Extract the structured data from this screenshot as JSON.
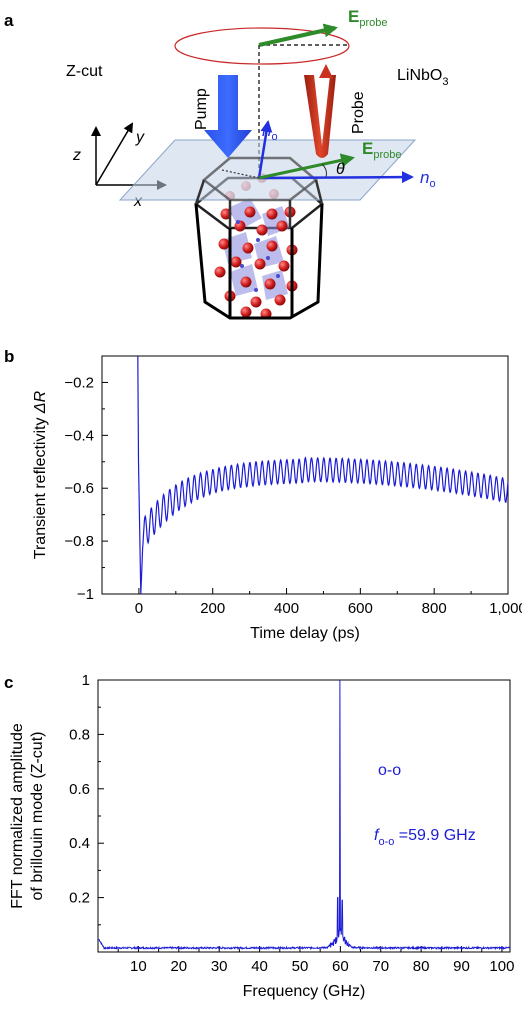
{
  "panel_a": {
    "letter": "a",
    "z_cut_label": "Z-cut",
    "material_label": "LiNbO",
    "material_sub": "3",
    "pump_label": "Pump",
    "probe_label": "Probe",
    "e_probe_top": "E",
    "e_probe_top_sub": "probe",
    "e_probe_mid": "E",
    "e_probe_mid_sub": "probe",
    "n_o_vertical": "n",
    "n_o_vertical_sub": "o",
    "n_o_horizontal": "n",
    "n_o_horizontal_sub": "o",
    "theta_label": "θ",
    "axis_x": "x",
    "axis_y": "y",
    "axis_z": "z",
    "colors": {
      "pump": "#2a52e8",
      "probe": "#c8321e",
      "e_field": "#2f8a2a",
      "n_o": "#2230e0",
      "atom": "#d42020"
    }
  },
  "chart_data": [
    {
      "panel_letter": "b",
      "type": "line",
      "xlabel": "Time delay (ps)",
      "ylabel": "Transient reflectivity ",
      "ylabel_symbol": "ΔR",
      "xlim": [
        -100,
        1000
      ],
      "ylim": [
        -1.0,
        -0.1
      ],
      "xticks": [
        0,
        200,
        400,
        600,
        800,
        1000
      ],
      "xtick_labels": [
        "0",
        "200",
        "400",
        "600",
        "800",
        "1,000"
      ],
      "yticks": [
        -1.0,
        -0.8,
        -0.6,
        -0.4,
        -0.2
      ],
      "ytick_labels": [
        "−1",
        "−0.8",
        "−0.6",
        "−0.4",
        "−0.2"
      ],
      "color": "#1c1cd6",
      "signal": {
        "start_x": -3,
        "start_y": -0.1,
        "min_x": 5,
        "min_y": -1.0,
        "baseline_start": -0.78,
        "baseline_peak": -0.53,
        "baseline_end": -0.61,
        "peak_x": 450,
        "oscillation_period_ps": 16.7,
        "amplitude_start": 0.06,
        "amplitude_mid": 0.045,
        "amplitude_end": 0.045
      }
    },
    {
      "panel_letter": "c",
      "type": "line",
      "xlabel": "Frequency (GHz)",
      "ylabel_line1": "FFT normalized amplitude",
      "ylabel_line2": "of brillouin mode (Z-cut)",
      "xlim": [
        0,
        102
      ],
      "ylim": [
        0,
        1.0
      ],
      "xticks": [
        10,
        20,
        30,
        40,
        50,
        60,
        70,
        80,
        90,
        100
      ],
      "xtick_labels": [
        "10",
        "20",
        "30",
        "40",
        "50",
        "60",
        "70",
        "80",
        "90",
        "100"
      ],
      "yticks": [
        0.2,
        0.4,
        0.6,
        0.8,
        1.0
      ],
      "ytick_labels": [
        "0.2",
        "0.4",
        "0.6",
        "0.8",
        "1"
      ],
      "color": "#1c1cd6",
      "peak": {
        "x": 59.9,
        "y": 1.0,
        "shoulder_left_y": 0.2,
        "shoulder_right_y": 0.19,
        "noise_floor": 0.012
      },
      "annotation_mode": "o-o",
      "annotation_f_symbol": "f",
      "annotation_f_sub": "o-o",
      "annotation_value": " =59.9 GHz"
    }
  ]
}
